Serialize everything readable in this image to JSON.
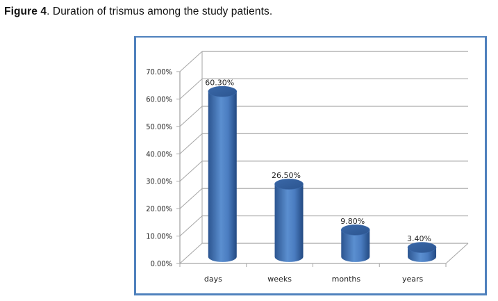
{
  "caption": {
    "figure_label": "Figure 4",
    "text": ". Duration of trismus among the study patients."
  },
  "chart_data": {
    "type": "bar",
    "style": "3d-cylinder",
    "title": "",
    "xlabel": "",
    "ylabel": "",
    "categories": [
      "days",
      "weeks",
      "months",
      "years"
    ],
    "values": [
      60.3,
      26.5,
      9.8,
      3.4
    ],
    "data_labels": [
      "60.30%",
      "26.50%",
      "9.80%",
      "3.40%"
    ],
    "ylim": [
      0,
      70
    ],
    "yticks": [
      0,
      10,
      20,
      30,
      40,
      50,
      60,
      70
    ],
    "ytick_labels": [
      "0.00%",
      "10.00%",
      "20.00%",
      "30.00%",
      "40.00%",
      "50.00%",
      "60.00%",
      "70.00%"
    ],
    "grid": true,
    "legend": "none",
    "colors": {
      "bar": "#4f81bd",
      "bar_dark": "#2c5590",
      "bar_light": "#6a9ad6",
      "grid": "#a6a6a6",
      "frame": "#4f81bd"
    }
  }
}
